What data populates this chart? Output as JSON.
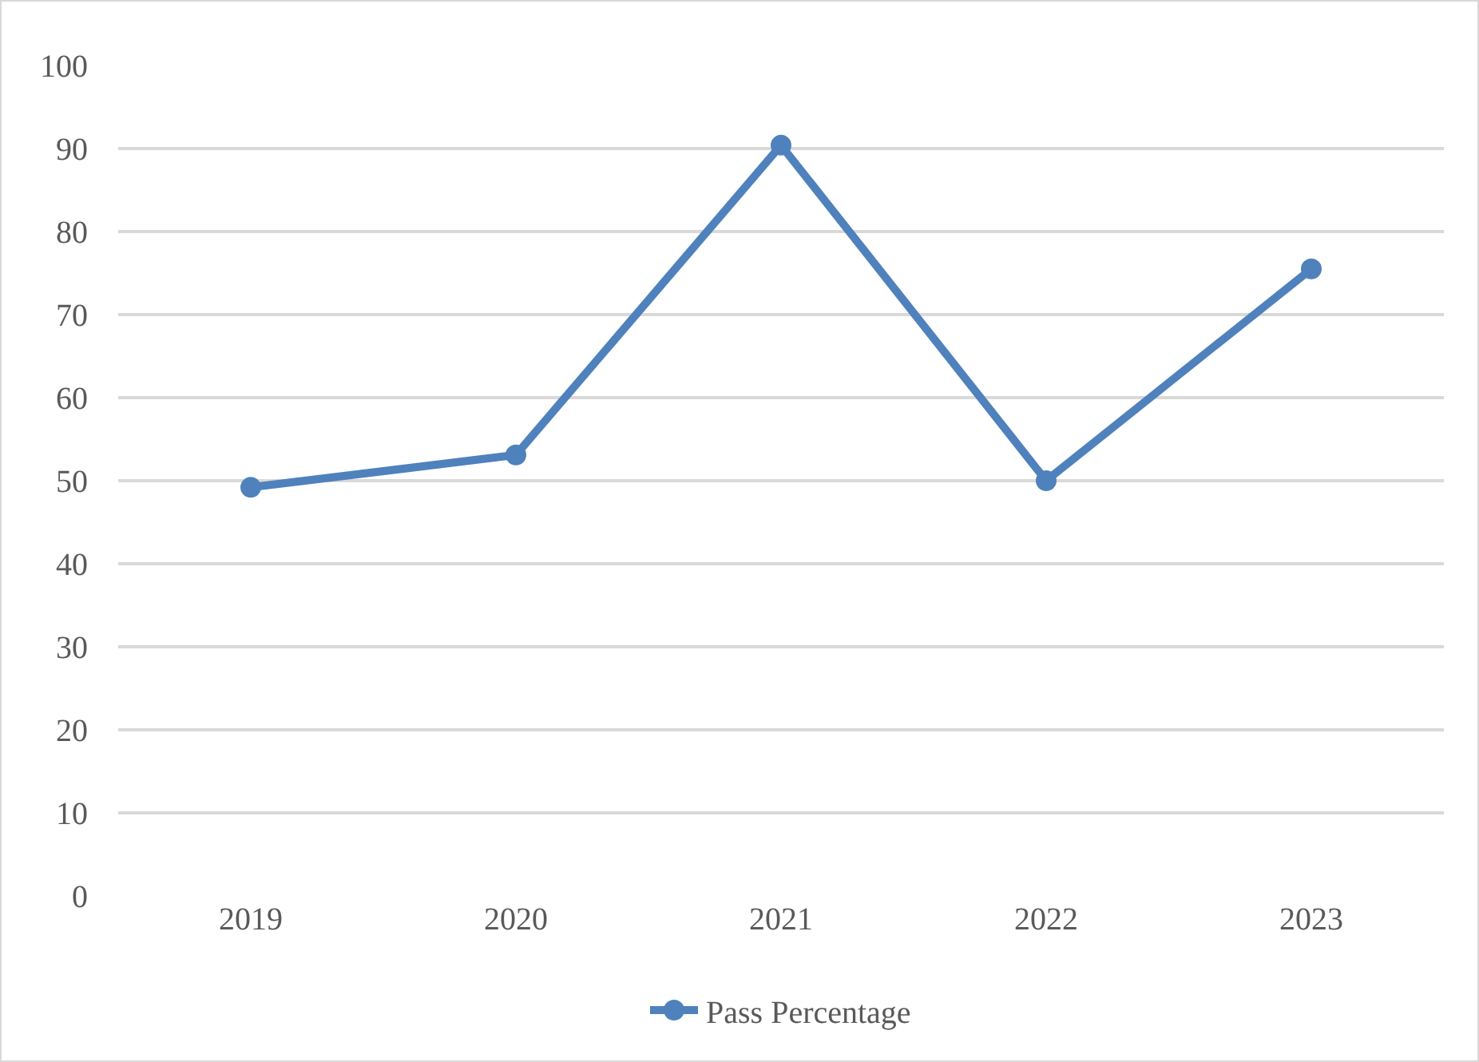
{
  "chart_data": {
    "type": "line",
    "categories": [
      "2019",
      "2020",
      "2021",
      "2022",
      "2023"
    ],
    "series": [
      {
        "name": "Pass Percentage",
        "color": "#4f81bd",
        "values": [
          49.2,
          53.1,
          90.4,
          50.0,
          75.5
        ]
      }
    ],
    "ylim": [
      0,
      100
    ],
    "yticks": [
      0,
      10,
      20,
      30,
      40,
      50,
      60,
      70,
      80,
      90,
      100
    ],
    "grid": "y",
    "legend": "bottom",
    "marker": "circle",
    "line_style": "solid"
  }
}
